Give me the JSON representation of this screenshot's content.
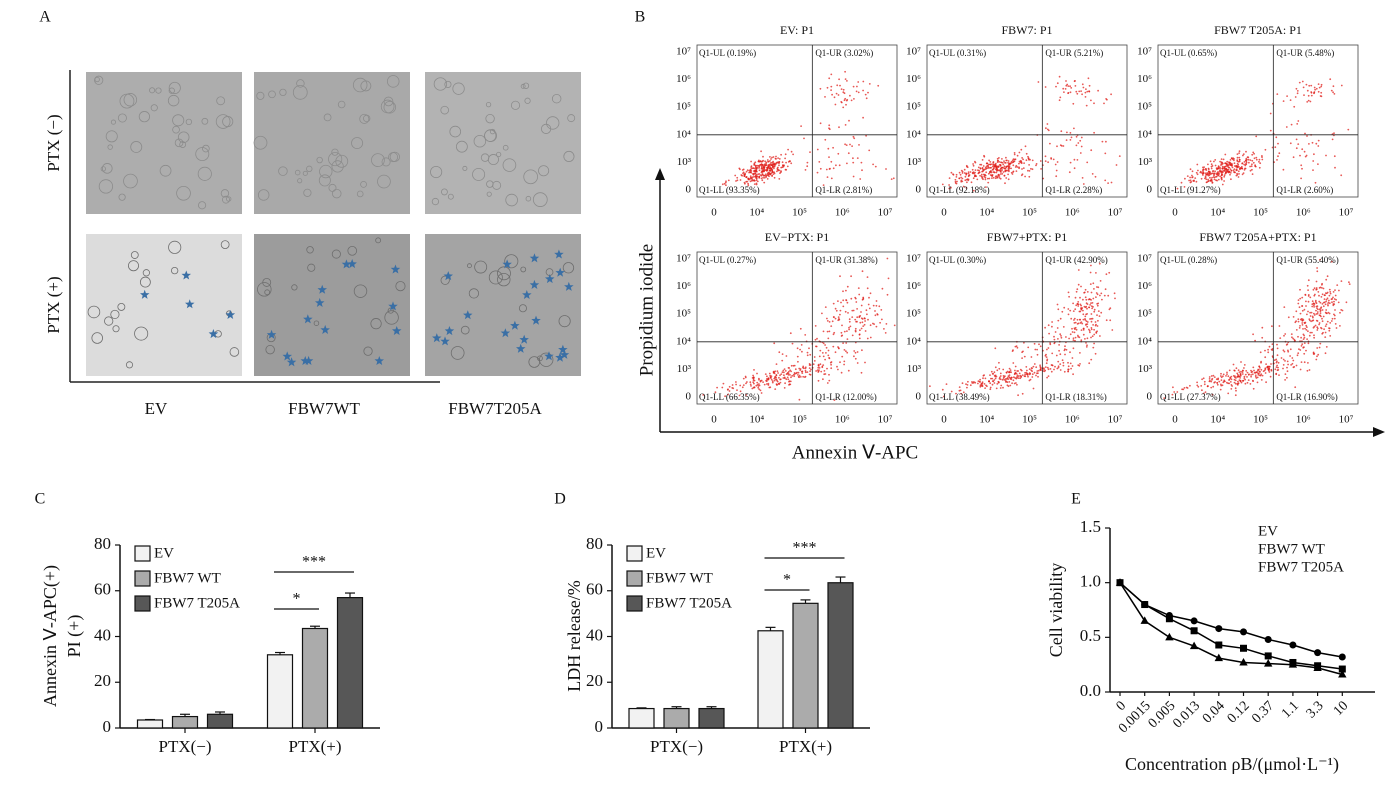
{
  "panel_a": {
    "label": "A",
    "rows": [
      "PTX (−)",
      "PTX (+)"
    ],
    "columns": [
      "EV",
      "FBW7WT",
      "FBW7T205A"
    ]
  },
  "panel_b": {
    "label": "B",
    "y_axis_label": "Propidium iodide",
    "x_axis_label": "Annexin Ⅴ-APC",
    "xtick_labels": [
      "0",
      "10⁴",
      "10⁵",
      "10⁶",
      "10⁷"
    ],
    "ytick_labels": [
      "0",
      "10³",
      "10⁴",
      "10⁵",
      "10⁶",
      "10⁷"
    ],
    "plots": [
      {
        "title": "EV: P1",
        "UL": "Q1-UL (0.19%)",
        "UR": "Q1-UR (3.02%)",
        "LL": "Q1-LL (93.35%)",
        "LR": "Q1-LR (2.81%)"
      },
      {
        "title": "FBW7: P1",
        "UL": "Q1-UL (0.31%)",
        "UR": "Q1-UR (5.21%)",
        "LL": "Q1-LL (92.18%)",
        "LR": "Q1-LR (2.28%)"
      },
      {
        "title": "FBW7 T205A: P1",
        "UL": "Q1-UL (0.65%)",
        "UR": "Q1-UR (5.48%)",
        "LL": "Q1-LL (91.27%)",
        "LR": "Q1-LR (2.60%)"
      },
      {
        "title": "EV−PTX: P1",
        "UL": "Q1-UL (0.27%)",
        "UR": "Q1-UR (31.38%)",
        "LL": "Q1-LL (66.35%)",
        "LR": "Q1-LR (12.00%)"
      },
      {
        "title": "FBW7+PTX: P1",
        "UL": "Q1-UL (0.30%)",
        "UR": "Q1-UR (42.90%)",
        "LL": "Q1-LL (38.49%)",
        "LR": "Q1-LR (18.31%)"
      },
      {
        "title": "FBW7 T205A+PTX: P1",
        "UL": "Q1-UL (0.28%)",
        "UR": "Q1-UR (55.40%)",
        "LL": "Q1-LL (27.37%)",
        "LR": "Q1-LR (16.90%)"
      }
    ]
  },
  "chart_data": [
    {
      "type": "bar",
      "label": "C",
      "ylabel": [
        "Annexin Ⅴ-APC(+)",
        "PI (+)"
      ],
      "categories": [
        "PTX(−)",
        "PTX(+)"
      ],
      "series": [
        {
          "name": "EV",
          "color": "#f2f2f2",
          "values": [
            3.5,
            32
          ],
          "errors": [
            0.2,
            1
          ]
        },
        {
          "name": "FBW7 WT",
          "color": "#ababab",
          "values": [
            5,
            43.5
          ],
          "errors": [
            1,
            1
          ]
        },
        {
          "name": "FBW7 T205A",
          "color": "#575757",
          "values": [
            6,
            57
          ],
          "errors": [
            1,
            2
          ]
        }
      ],
      "ylim": [
        0,
        80
      ],
      "yticks": [
        0,
        20,
        40,
        60,
        80
      ],
      "annotations": [
        "*",
        "***"
      ]
    },
    {
      "type": "bar",
      "label": "D",
      "ylabel": [
        "LDH release/%"
      ],
      "categories": [
        "PTX(−)",
        "PTX(+)"
      ],
      "series": [
        {
          "name": "EV",
          "color": "#f2f2f2",
          "values": [
            8.5,
            42.5
          ],
          "errors": [
            0.3,
            1.5
          ]
        },
        {
          "name": "FBW7 WT",
          "color": "#ababab",
          "values": [
            8.5,
            54.5
          ],
          "errors": [
            0.8,
            1.5
          ]
        },
        {
          "name": "FBW7 T205A",
          "color": "#575757",
          "values": [
            8.5,
            63.5
          ],
          "errors": [
            0.8,
            2.5
          ]
        }
      ],
      "ylim": [
        0,
        80
      ],
      "yticks": [
        0,
        20,
        40,
        60,
        80
      ],
      "annotations": [
        "*",
        "***"
      ]
    },
    {
      "type": "line",
      "label": "E",
      "ylabel": "Cell viability",
      "xlabel": "Concentration ρB/(μmol·L⁻¹)",
      "categories": [
        "0",
        "0.0015",
        "0.005",
        "0.013",
        "0.04",
        "0.12",
        "0.37",
        "1.1",
        "3.3",
        "10"
      ],
      "series": [
        {
          "name": "EV",
          "color": "#000000",
          "marker": "circle",
          "values": [
            1.0,
            0.8,
            0.7,
            0.65,
            0.58,
            0.55,
            0.48,
            0.43,
            0.36,
            0.32
          ]
        },
        {
          "name": "FBW7 WT",
          "color": "#000000",
          "marker": "square",
          "values": [
            1.0,
            0.8,
            0.67,
            0.56,
            0.43,
            0.4,
            0.33,
            0.27,
            0.24,
            0.21
          ]
        },
        {
          "name": "FBW7 T205A",
          "color": "#000000",
          "marker": "triangle",
          "values": [
            1.0,
            0.65,
            0.5,
            0.42,
            0.31,
            0.27,
            0.26,
            0.25,
            0.22,
            0.16
          ]
        }
      ],
      "ylim": [
        0,
        1.5
      ],
      "yticks": [
        {
          "value": 0,
          "label": "0.0"
        },
        {
          "value": 0.5,
          "label": "0.5"
        },
        {
          "value": 1,
          "label": "1.0"
        },
        {
          "value": 1.5,
          "label": "1.5"
        }
      ]
    }
  ]
}
